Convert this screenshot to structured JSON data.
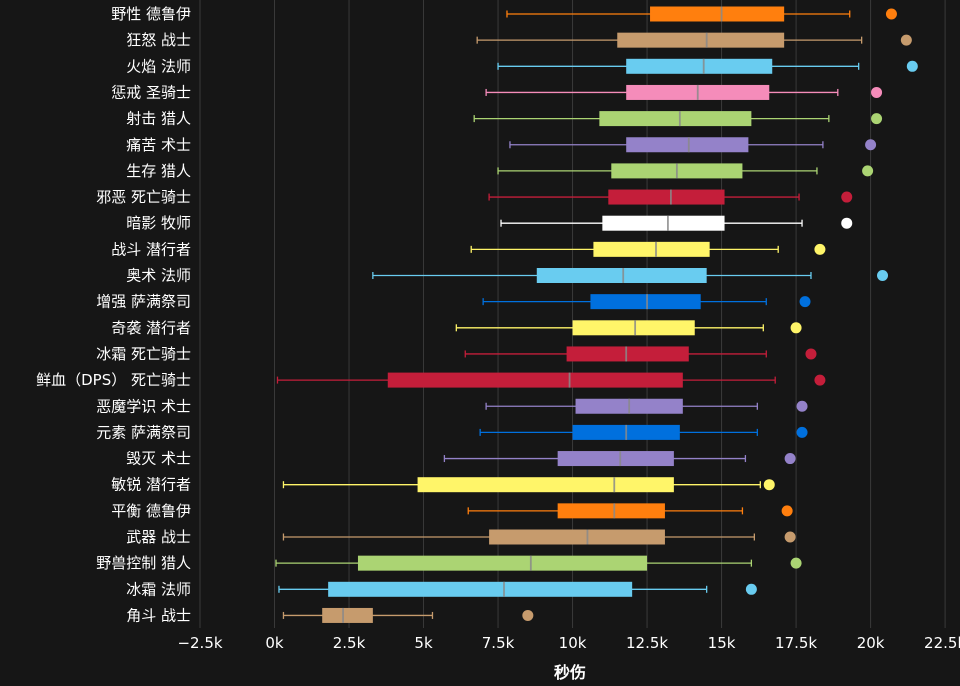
{
  "chart_data": {
    "type": "boxplot",
    "orientation": "horizontal",
    "xlabel": "秒伤",
    "xlim": [
      -2500,
      23000
    ],
    "x_ticks": [
      -2500,
      0,
      2500,
      5000,
      7500,
      10000,
      12500,
      15000,
      17500,
      20000,
      22500
    ],
    "x_tick_labels": [
      "−2.5k",
      "0k",
      "2.5k",
      "5k",
      "7.5k",
      "10k",
      "12.5k",
      "15k",
      "17.5k",
      "20k",
      "22.5k"
    ],
    "grid": true,
    "legend": "none",
    "series": [
      {
        "name": "野性 德鲁伊",
        "color": "#ff7f0e",
        "min": 7800,
        "q1": 12600,
        "median": 15000,
        "q3": 17100,
        "max": 19300,
        "outlier": 20700
      },
      {
        "name": "狂怒 战士",
        "color": "#c69b6d",
        "min": 6800,
        "q1": 11500,
        "median": 14500,
        "q3": 17100,
        "max": 19700,
        "outlier": 21200
      },
      {
        "name": "火焰 法师",
        "color": "#69ccf0",
        "min": 7500,
        "q1": 11800,
        "median": 14400,
        "q3": 16700,
        "max": 19600,
        "outlier": 21400
      },
      {
        "name": "惩戒 圣骑士",
        "color": "#f58cba",
        "min": 7100,
        "q1": 11800,
        "median": 14200,
        "q3": 16600,
        "max": 18900,
        "outlier": 20200
      },
      {
        "name": "射击 猎人",
        "color": "#abd473",
        "min": 6700,
        "q1": 10900,
        "median": 13600,
        "q3": 16000,
        "max": 18600,
        "outlier": 20200
      },
      {
        "name": "痛苦 术士",
        "color": "#9482c9",
        "min": 7900,
        "q1": 11800,
        "median": 13900,
        "q3": 15900,
        "max": 18400,
        "outlier": 20000
      },
      {
        "name": "生存 猎人",
        "color": "#abd473",
        "min": 7500,
        "q1": 11300,
        "median": 13500,
        "q3": 15700,
        "max": 18200,
        "outlier": 19900
      },
      {
        "name": "邪恶 死亡骑士",
        "color": "#c41e3a",
        "min": 7200,
        "q1": 11200,
        "median": 13300,
        "q3": 15100,
        "max": 17600,
        "outlier": 19200
      },
      {
        "name": "暗影 牧师",
        "color": "#ffffff",
        "min": 7600,
        "q1": 11000,
        "median": 13200,
        "q3": 15100,
        "max": 17700,
        "outlier": 19200
      },
      {
        "name": "战斗 潜行者",
        "color": "#fff569",
        "min": 6600,
        "q1": 10700,
        "median": 12800,
        "q3": 14600,
        "max": 16900,
        "outlier": 18300
      },
      {
        "name": "奥术 法师",
        "color": "#69ccf0",
        "min": 3300,
        "q1": 8800,
        "median": 11700,
        "q3": 14500,
        "max": 18000,
        "outlier": 20400
      },
      {
        "name": "增强 萨满祭司",
        "color": "#0070de",
        "min": 7000,
        "q1": 10600,
        "median": 12500,
        "q3": 14300,
        "max": 16500,
        "outlier": 17800
      },
      {
        "name": "奇袭 潜行者",
        "color": "#fff569",
        "min": 6100,
        "q1": 10000,
        "median": 12100,
        "q3": 14100,
        "max": 16400,
        "outlier": 17500
      },
      {
        "name": "冰霜 死亡骑士",
        "color": "#c41e3a",
        "min": 6400,
        "q1": 9800,
        "median": 11800,
        "q3": 13900,
        "max": 16500,
        "outlier": 18000
      },
      {
        "name": "鲜血（DPS） 死亡骑士",
        "color": "#c41e3a",
        "min": 100,
        "q1": 3800,
        "median": 9900,
        "q3": 13700,
        "max": 16800,
        "outlier": 18300
      },
      {
        "name": "恶魔学识 术士",
        "color": "#9482c9",
        "min": 7100,
        "q1": 10100,
        "median": 11900,
        "q3": 13700,
        "max": 16200,
        "outlier": 17700
      },
      {
        "name": "元素 萨满祭司",
        "color": "#0070de",
        "min": 6900,
        "q1": 10000,
        "median": 11800,
        "q3": 13600,
        "max": 16200,
        "outlier": 17700
      },
      {
        "name": "毁灭 术士",
        "color": "#9482c9",
        "min": 5700,
        "q1": 9500,
        "median": 11600,
        "q3": 13400,
        "max": 15800,
        "outlier": 17300
      },
      {
        "name": "敏锐 潜行者",
        "color": "#fff569",
        "min": 300,
        "q1": 4800,
        "median": 11400,
        "q3": 13400,
        "max": 16300,
        "outlier": 16600
      },
      {
        "name": "平衡 德鲁伊",
        "color": "#ff7f0e",
        "min": 6500,
        "q1": 9500,
        "median": 11400,
        "q3": 13100,
        "max": 15700,
        "outlier": 17200
      },
      {
        "name": "武器 战士",
        "color": "#c69b6d",
        "min": 300,
        "q1": 7200,
        "median": 10500,
        "q3": 13100,
        "max": 16100,
        "outlier": 17300
      },
      {
        "name": "野兽控制 猎人",
        "color": "#abd473",
        "min": 50,
        "q1": 2800,
        "median": 8600,
        "q3": 12500,
        "max": 16000,
        "outlier": 17500
      },
      {
        "name": "冰霜 法师",
        "color": "#69ccf0",
        "min": 150,
        "q1": 1800,
        "median": 7700,
        "q3": 12000,
        "max": 14500,
        "outlier": 16000
      },
      {
        "name": "角斗 战士",
        "color": "#c69b6d",
        "min": 300,
        "q1": 1600,
        "median": 2300,
        "q3": 3300,
        "max": 5300,
        "outlier": 8500
      }
    ]
  }
}
